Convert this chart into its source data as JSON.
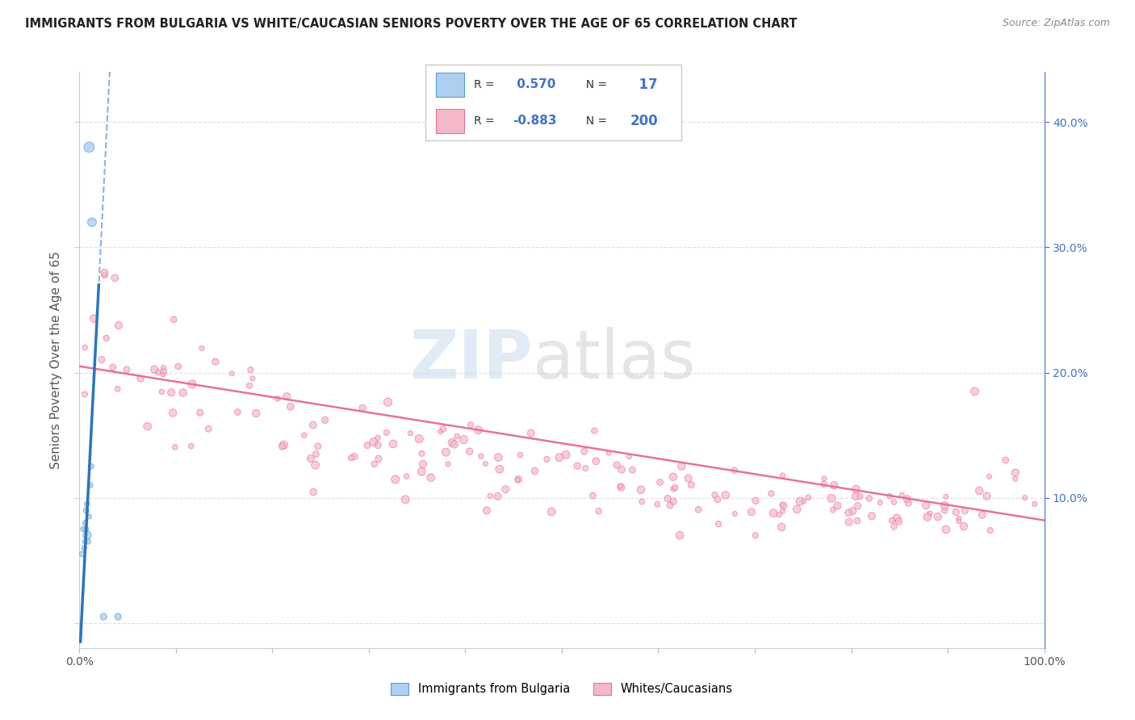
{
  "title": "IMMIGRANTS FROM BULGARIA VS WHITE/CAUCASIAN SENIORS POVERTY OVER THE AGE OF 65 CORRELATION CHART",
  "source": "Source: ZipAtlas.com",
  "ylabel": "Seniors Poverty Over the Age of 65",
  "xlim": [
    0.0,
    1.0
  ],
  "ylim": [
    -0.02,
    0.44
  ],
  "r_blue": 0.57,
  "n_blue": 17,
  "r_pink": -0.883,
  "n_pink": 200,
  "blue_fill": "#AECFF0",
  "blue_edge": "#5B9BD5",
  "blue_line_color": "#2E75B6",
  "pink_fill": "#F4B8C8",
  "pink_edge": "#E8729A",
  "pink_line_color": "#E8729A",
  "text_blue_color": "#4472C4",
  "text_pink_color": "#E8729A",
  "legend_label_blue": "Immigrants from Bulgaria",
  "legend_label_pink": "Whites/Caucasians",
  "ytick_right_vals": [
    0.1,
    0.2,
    0.3,
    0.4
  ],
  "ytick_right_labels": [
    "10.0%",
    "20.0%",
    "30.0%",
    "40.0%"
  ],
  "xtick_vals": [
    0.0,
    0.1,
    0.2,
    0.3,
    0.4,
    0.5,
    0.6,
    0.7,
    0.8,
    0.9,
    1.0
  ],
  "xtick_labels": [
    "0.0%",
    "",
    "",
    "",
    "",
    "",
    "",
    "",
    "",
    "",
    "100.0%"
  ],
  "grid_color": "#E0E0E0",
  "bg_color": "#FFFFFF",
  "pink_trend_start_y": 0.205,
  "pink_trend_end_y": 0.082,
  "blue_trend_slope": 15.0,
  "blue_trend_intercept": -0.03
}
